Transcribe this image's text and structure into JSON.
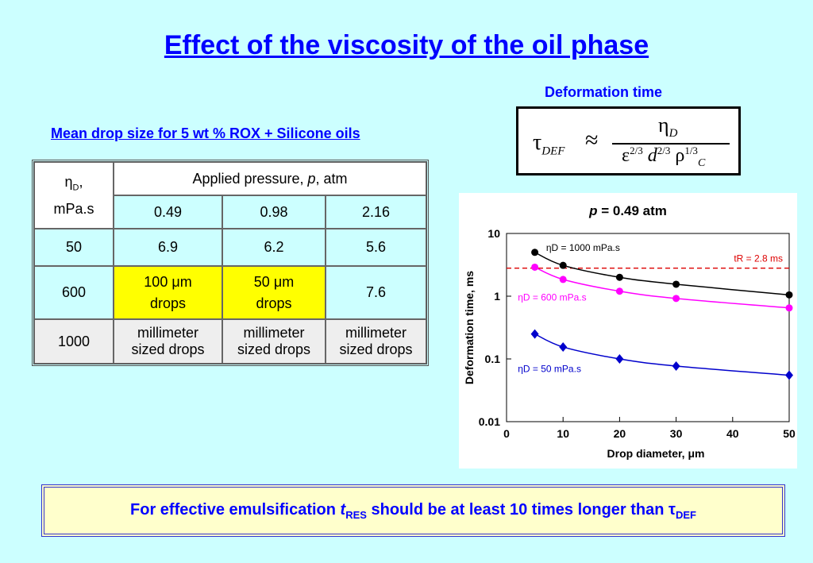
{
  "title": "Effect of the viscosity of the oil phase",
  "deformation_label": "Deformation time",
  "formula": {
    "tau": "τ",
    "def_sub": "DEF",
    "approx": "≈",
    "eta": "η",
    "eta_sub": "D",
    "eps": "ε",
    "exp1": "2/3",
    "d": "d",
    "exp2": "2/3",
    "rho": "ρ",
    "exp3": "1/3",
    "rho_sub": "C"
  },
  "table": {
    "title": "Mean drop size for 5 wt % ROX + Silicone oils",
    "corner_sym": "η",
    "corner_sub": "D",
    "corner_comma": ",",
    "corner_unit": "mPa.s",
    "pressure_header_a": "Applied pressure, ",
    "pressure_header_p": "p",
    "pressure_header_b": ", atm",
    "pressures": [
      "0.49",
      "0.98",
      "2.16"
    ],
    "row50": {
      "eta": "50",
      "vals": [
        "6.9",
        "6.2",
        "5.6"
      ]
    },
    "row600": {
      "eta": "600",
      "c1a": "100 μm",
      "c1b": "drops",
      "c2a": "50 μm",
      "c2b": "drops",
      "c3": "7.6"
    },
    "row1000": {
      "eta": "1000",
      "a": "millimeter",
      "b": "sized drops"
    }
  },
  "chart_data": {
    "type": "scatter",
    "title_p": "p",
    "title_rest": " = 0.49 atm",
    "xlabel": "Drop diameter, μm",
    "ylabel": "Deformation time, ms",
    "xlim": [
      0,
      50
    ],
    "ylim": [
      0.01,
      10
    ],
    "yscale": "log",
    "xticks": [
      "0",
      "10",
      "20",
      "30",
      "40",
      "50"
    ],
    "yticks": [
      "0.01",
      "0.1",
      "1",
      "10"
    ],
    "x": [
      5,
      10,
      20,
      30,
      50
    ],
    "series": [
      {
        "name": "ηD = 1000 mPa.s",
        "values": [
          5.0,
          3.1,
          2.0,
          1.55,
          1.05
        ],
        "color": "#000000",
        "marker": "circle"
      },
      {
        "name": "ηD = 600 mPa.s",
        "values": [
          2.9,
          1.85,
          1.2,
          0.92,
          0.65
        ],
        "color": "#ff00ff",
        "marker": "circle"
      },
      {
        "name": "ηD = 50 mPa.s",
        "values": [
          0.25,
          0.155,
          0.1,
          0.077,
          0.055
        ],
        "color": "#0000cc",
        "marker": "diamond"
      }
    ],
    "reference_line": {
      "label": "tR = 2.8 ms",
      "value": 2.8,
      "color": "#dd0000"
    }
  },
  "bottom": {
    "text_a": "For effective emulsification ",
    "t": "t",
    "res": "RES",
    "text_b": " should be at least 10 times longer than ",
    "tau": "τ",
    "def": "DEF"
  }
}
